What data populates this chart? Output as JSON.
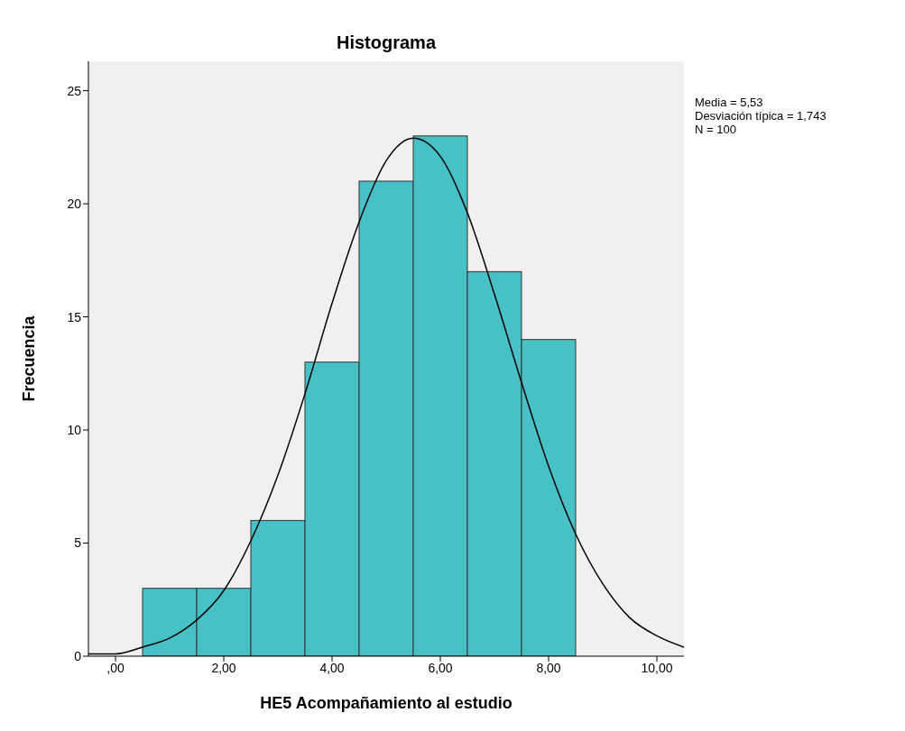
{
  "chart_data": {
    "type": "histogram",
    "title": "Histograma",
    "xlabel": "HE5 Acompañamiento al estudio",
    "ylabel": "Frecuencia",
    "annotations": [
      "Media = 5,53",
      "Desviación típica = 1,743",
      "N = 100"
    ],
    "bins": [
      0.5,
      1.5,
      2.5,
      3.5,
      4.5,
      5.5,
      6.5,
      7.5,
      8.5
    ],
    "values": [
      3,
      3,
      6,
      13,
      21,
      23,
      17,
      14
    ],
    "color": "#48c1c6",
    "xlim": [
      -0.5,
      10.5
    ],
    "xticks": [
      {
        "value": 0,
        "label": ",00"
      },
      {
        "value": 2,
        "label": "2,00"
      },
      {
        "value": 4,
        "label": "4,00"
      },
      {
        "value": 6,
        "label": "6,00"
      },
      {
        "value": 8,
        "label": "8,00"
      },
      {
        "value": 10,
        "label": "10,00"
      }
    ],
    "ylim": [
      0,
      26.3
    ],
    "yticks": [
      0,
      5,
      10,
      15,
      20,
      25
    ],
    "marker": "none",
    "series": [
      {
        "type": "line",
        "color": "#000000",
        "x": [
          -0.5,
          0,
          0.5,
          1,
          1.5,
          2,
          2.5,
          3,
          3.5,
          4,
          4.5,
          5,
          5.5,
          6,
          6.5,
          7,
          7.5,
          8,
          8.5,
          9,
          9.5,
          10,
          10.5
        ],
        "values": [
          0.1,
          0.1,
          0.4,
          0.8,
          1.6,
          2.9,
          5.1,
          8.0,
          11.6,
          15.6,
          19.2,
          21.9,
          22.9,
          22.1,
          19.6,
          16.0,
          12.1,
          8.4,
          5.4,
          3.2,
          1.7,
          0.9,
          0.4
        ]
      }
    ]
  }
}
